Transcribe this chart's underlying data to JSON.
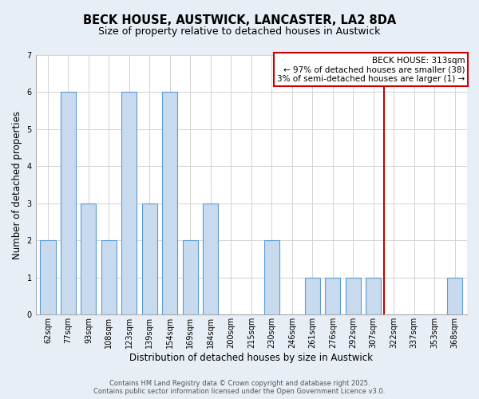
{
  "title": "BECK HOUSE, AUSTWICK, LANCASTER, LA2 8DA",
  "subtitle": "Size of property relative to detached houses in Austwick",
  "xlabel": "Distribution of detached houses by size in Austwick",
  "ylabel": "Number of detached properties",
  "bin_labels": [
    "62sqm",
    "77sqm",
    "93sqm",
    "108sqm",
    "123sqm",
    "139sqm",
    "154sqm",
    "169sqm",
    "184sqm",
    "200sqm",
    "215sqm",
    "230sqm",
    "246sqm",
    "261sqm",
    "276sqm",
    "292sqm",
    "307sqm",
    "322sqm",
    "337sqm",
    "353sqm",
    "368sqm"
  ],
  "bar_heights": [
    2,
    6,
    3,
    2,
    6,
    3,
    6,
    2,
    3,
    0,
    0,
    2,
    0,
    1,
    1,
    1,
    1,
    0,
    0,
    0,
    1
  ],
  "bar_color": "#c8daed",
  "bar_edgecolor": "#5b9bd5",
  "beck_house_bin_index": 17,
  "vline_color": "#cc0000",
  "legend_title": "BECK HOUSE: 313sqm",
  "legend_line1": "← 97% of detached houses are smaller (38)",
  "legend_line2": "3% of semi-detached houses are larger (1) →",
  "ylim": [
    0,
    7
  ],
  "yticks": [
    0,
    1,
    2,
    3,
    4,
    5,
    6,
    7
  ],
  "plot_bg_color": "#ffffff",
  "fig_bg_color": "#e8eef5",
  "grid_color": "#cccccc",
  "footer_line1": "Contains HM Land Registry data © Crown copyright and database right 2025.",
  "footer_line2": "Contains public sector information licensed under the Open Government Licence v3.0.",
  "title_fontsize": 10.5,
  "subtitle_fontsize": 9,
  "xlabel_fontsize": 8.5,
  "ylabel_fontsize": 8.5,
  "tick_fontsize": 7,
  "footer_fontsize": 6,
  "legend_fontsize": 7.5
}
